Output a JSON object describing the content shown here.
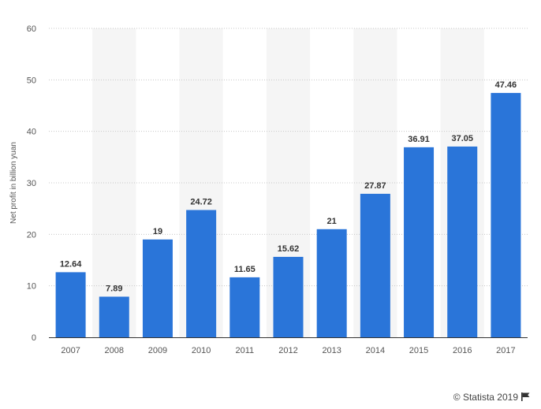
{
  "chart_data": {
    "type": "bar",
    "categories": [
      "2007",
      "2008",
      "2009",
      "2010",
      "2011",
      "2012",
      "2013",
      "2014",
      "2015",
      "2016",
      "2017"
    ],
    "values": [
      12.64,
      7.89,
      19,
      24.72,
      11.65,
      15.62,
      21,
      27.87,
      36.91,
      37.05,
      47.46
    ],
    "data_labels": [
      "12.64",
      "7.89",
      "19",
      "24.72",
      "11.65",
      "15.62",
      "21",
      "27.87",
      "36.91",
      "37.05",
      "47.46"
    ],
    "title": "",
    "xlabel": "",
    "ylabel": "Net profit in billion yuan",
    "ylim": [
      0,
      60
    ],
    "yticks": [
      0,
      10,
      20,
      30,
      40,
      50,
      60
    ],
    "grid": "horizontal dotted",
    "bar_color": "#2a75d9",
    "alternate_band_color": "#f5f5f5",
    "legend": "none"
  },
  "credit": {
    "text": "© Statista 2019",
    "icon": "flag-icon"
  }
}
